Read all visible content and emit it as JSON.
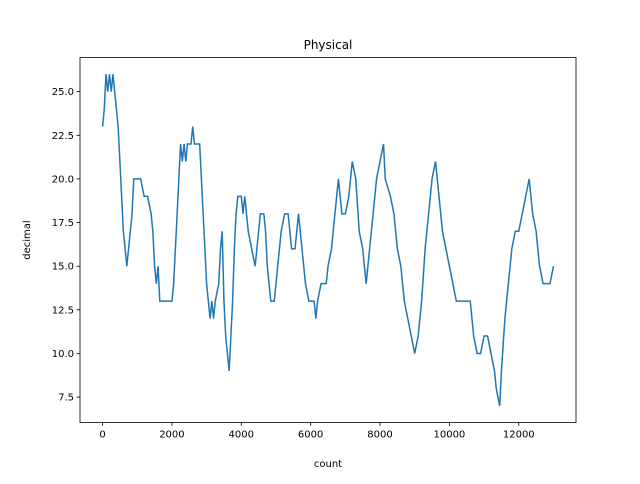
{
  "chart_data": {
    "type": "line",
    "title": "Physical",
    "x_label": "count",
    "y_label": "decimal",
    "color": "#1f77b4",
    "x": [
      0,
      50,
      100,
      150,
      200,
      250,
      300,
      350,
      400,
      450,
      500,
      550,
      600,
      650,
      700,
      750,
      800,
      850,
      900,
      1000,
      1100,
      1200,
      1300,
      1400,
      1450,
      1500,
      1550,
      1600,
      1650,
      1800,
      2000,
      2050,
      2100,
      2150,
      2200,
      2250,
      2300,
      2350,
      2400,
      2450,
      2550,
      2600,
      2650,
      2800,
      2850,
      2900,
      2950,
      3000,
      3050,
      3100,
      3150,
      3200,
      3250,
      3350,
      3400,
      3450,
      3500,
      3550,
      3600,
      3650,
      3700,
      3750,
      3800,
      3850,
      3900,
      4000,
      4050,
      4100,
      4150,
      4200,
      4300,
      4400,
      4450,
      4500,
      4550,
      4650,
      4700,
      4750,
      4800,
      4850,
      4950,
      5050,
      5150,
      5250,
      5350,
      5450,
      5550,
      5650,
      5750,
      5800,
      5850,
      5950,
      6100,
      6150,
      6200,
      6300,
      6450,
      6500,
      6600,
      6700,
      6800,
      6900,
      7000,
      7100,
      7150,
      7200,
      7300,
      7400,
      7500,
      7600,
      7700,
      7800,
      7900,
      8000,
      8100,
      8150,
      8300,
      8400,
      8500,
      8600,
      8700,
      8800,
      8900,
      9000,
      9100,
      9200,
      9300,
      9400,
      9500,
      9600,
      9700,
      9800,
      9900,
      10000,
      10100,
      10200,
      10400,
      10600,
      10700,
      10800,
      10900,
      11000,
      11100,
      11200,
      11300,
      11350,
      11450,
      11500,
      11600,
      11700,
      11800,
      11900,
      12000,
      12100,
      12200,
      12300,
      12400,
      12500,
      12600,
      12700,
      12800,
      12900,
      13000
    ],
    "values": [
      23,
      24,
      26,
      25,
      26,
      25,
      26,
      25,
      24,
      23,
      21,
      19,
      17,
      16,
      15,
      16,
      17,
      18,
      20,
      20,
      20,
      19,
      19,
      18,
      17,
      15,
      14,
      15,
      13,
      13,
      13,
      14,
      16,
      18,
      20,
      22,
      21,
      22,
      21,
      22,
      22,
      23,
      22,
      22,
      20,
      18,
      16,
      14,
      13,
      12,
      13,
      12,
      13,
      14,
      16,
      17,
      13,
      11,
      10,
      9,
      11,
      13,
      16,
      18,
      19,
      19,
      18,
      19,
      18,
      17,
      16,
      15,
      16,
      17,
      18,
      18,
      17,
      15,
      14,
      13,
      13,
      15,
      17,
      18,
      18,
      16,
      16,
      18,
      16,
      15,
      14,
      13,
      13,
      12,
      13,
      14,
      14,
      15,
      16,
      18,
      20,
      18,
      18,
      19,
      20,
      21,
      20,
      17,
      16,
      14,
      16,
      18,
      20,
      21,
      22,
      20,
      19,
      18,
      16,
      15,
      13,
      12,
      11,
      10,
      11,
      13,
      16,
      18,
      20,
      21,
      19,
      17,
      16,
      15,
      14,
      13,
      13,
      13,
      11,
      10,
      10,
      11,
      11,
      10,
      9,
      8,
      7,
      9,
      12,
      14,
      16,
      17,
      17,
      18,
      19,
      20,
      18,
      17,
      15,
      14,
      14,
      14,
      15
    ],
    "xlim": [
      -650,
      13650
    ],
    "ylim": [
      6.05,
      26.95
    ],
    "xticks": [
      0,
      2000,
      4000,
      6000,
      8000,
      10000,
      12000
    ],
    "yticks": [
      7.5,
      {
        "value": 10,
        "label": "10.0"
      },
      12.5,
      {
        "value": 15,
        "label": "15.0"
      },
      17.5,
      {
        "value": 20,
        "label": "20.0"
      },
      22.5,
      {
        "value": 25,
        "label": "25.0"
      }
    ]
  }
}
